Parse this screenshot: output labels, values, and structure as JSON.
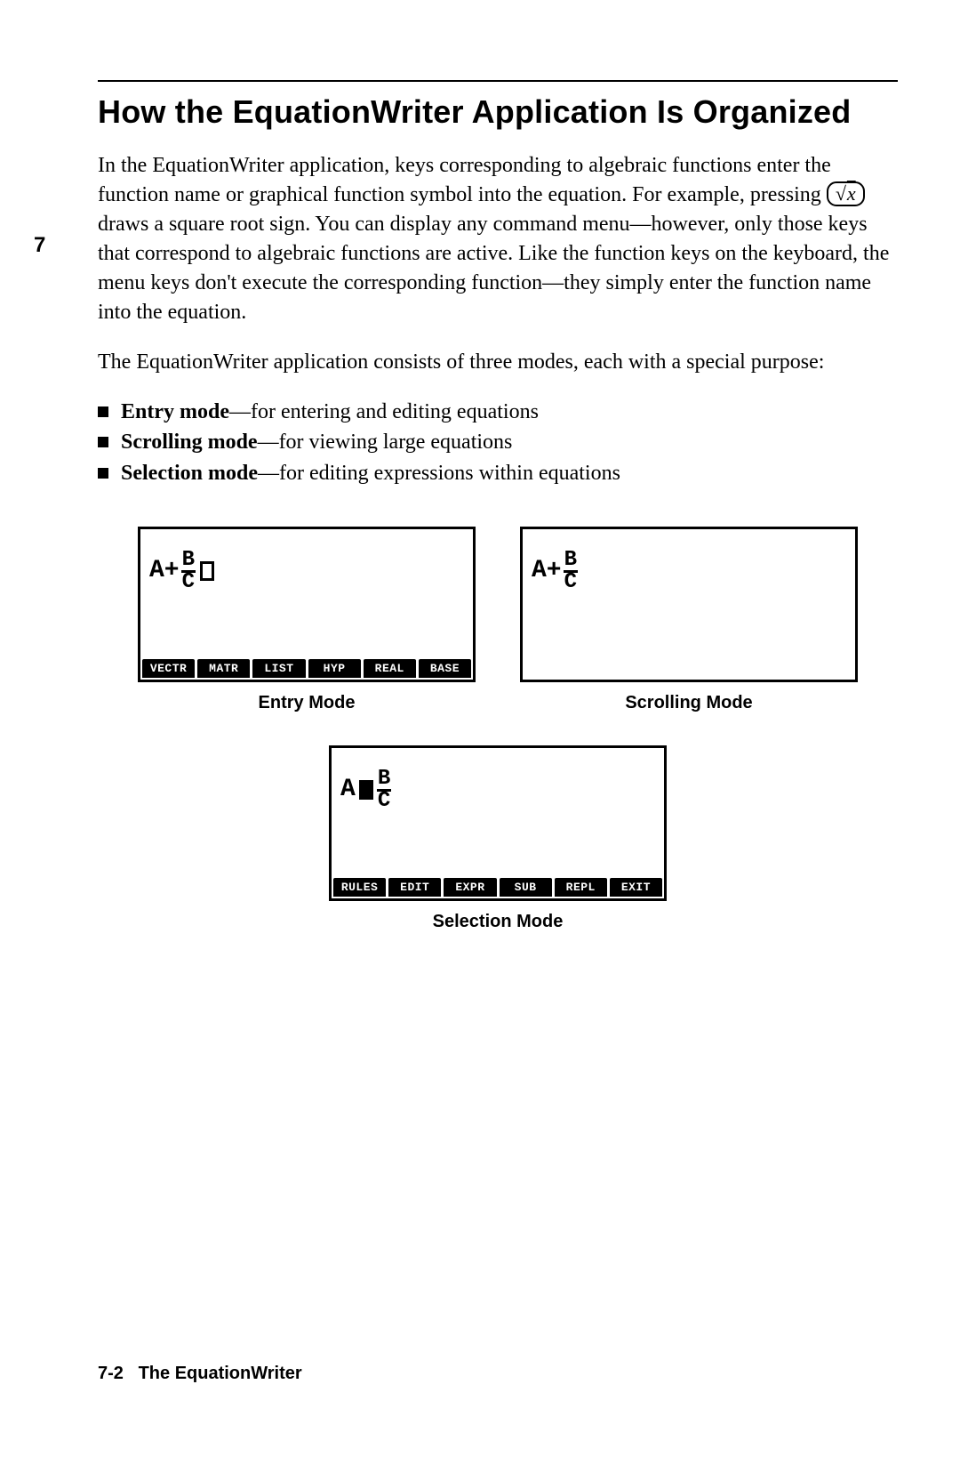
{
  "margin_number": "7",
  "heading": "How the EquationWriter Application Is Organized",
  "paragraph1_pre": "In the EquationWriter application, keys corresponding to algebraic functions enter the function name or graphical function symbol into the equation. For example, pressing ",
  "keycap_radical": "√",
  "keycap_arg": "x",
  "paragraph1_post": " draws a square root sign. You can display any command menu—however, only those keys that correspond to algebraic functions are active. Like the function keys on the keyboard, the menu keys don't execute the corresponding function—they simply enter the function name into the equation.",
  "paragraph2": "The EquationWriter application consists of three modes, each with a special purpose:",
  "bullets": [
    {
      "label": "Entry mode",
      "rest": "—for entering and editing equations"
    },
    {
      "label": "Scrolling mode",
      "rest": "—for viewing large equations"
    },
    {
      "label": "Selection mode",
      "rest": "—for editing expressions within equations"
    }
  ],
  "screens": {
    "entry": {
      "caption": "Entry Mode",
      "eq_left": "A+",
      "frac_num": "B",
      "frac_den": "C",
      "menu": [
        "VECTR",
        "MATR",
        "LIST",
        "HYP",
        "REAL",
        "BASE"
      ]
    },
    "scrolling": {
      "caption": "Scrolling Mode",
      "eq_left": "A+",
      "frac_num": "B",
      "frac_den": "C"
    },
    "selection": {
      "caption": "Selection Mode",
      "eq_left": "A",
      "frac_num": "B",
      "frac_den": "C",
      "menu": [
        "RULES",
        "EDIT",
        "EXPR",
        "SUB",
        "REPL",
        "EXIT"
      ]
    }
  },
  "footer_page": "7-2",
  "footer_title": "The EquationWriter",
  "colors": {
    "fg": "#000000",
    "bg": "#ffffff"
  }
}
